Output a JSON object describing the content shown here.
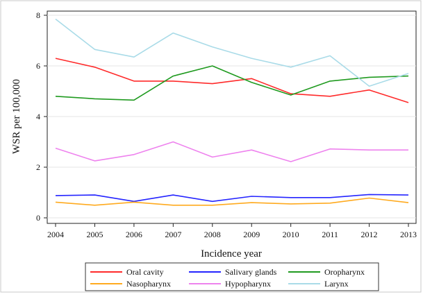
{
  "chart_data": {
    "type": "line",
    "xlabel": "Incidence year",
    "ylabel": "WSR per 100,000",
    "x": [
      2004,
      2005,
      2006,
      2007,
      2008,
      2009,
      2010,
      2011,
      2012,
      2013
    ],
    "ylim": [
      0,
      8
    ],
    "yticks": [
      0,
      2,
      4,
      6,
      8
    ],
    "grid": "horizontal",
    "legend": "bottom",
    "series": [
      {
        "name": "Oral cavity",
        "color": "#ff2a2a",
        "values": [
          6.3,
          5.95,
          5.4,
          5.4,
          5.3,
          5.5,
          4.9,
          4.8,
          5.05,
          4.55
        ]
      },
      {
        "name": "Salivary glands",
        "color": "#2424ff",
        "values": [
          0.88,
          0.9,
          0.65,
          0.9,
          0.65,
          0.85,
          0.8,
          0.8,
          0.92,
          0.9
        ]
      },
      {
        "name": "Oropharynx",
        "color": "#1f9a1f",
        "values": [
          4.8,
          4.7,
          4.65,
          5.6,
          6.0,
          5.35,
          4.85,
          5.4,
          5.55,
          5.6
        ]
      },
      {
        "name": "Nasopharynx",
        "color": "#ffaa1e",
        "values": [
          0.62,
          0.5,
          0.62,
          0.5,
          0.5,
          0.6,
          0.55,
          0.58,
          0.78,
          0.6
        ]
      },
      {
        "name": "Hypopharynx",
        "color": "#ee82ee",
        "values": [
          2.75,
          2.25,
          2.5,
          3.0,
          2.4,
          2.68,
          2.22,
          2.72,
          2.68,
          2.68
        ]
      },
      {
        "name": "Larynx",
        "color": "#a9dbe8",
        "values": [
          7.85,
          6.65,
          6.35,
          7.3,
          6.75,
          6.3,
          5.95,
          6.4,
          5.2,
          5.7
        ]
      }
    ]
  }
}
